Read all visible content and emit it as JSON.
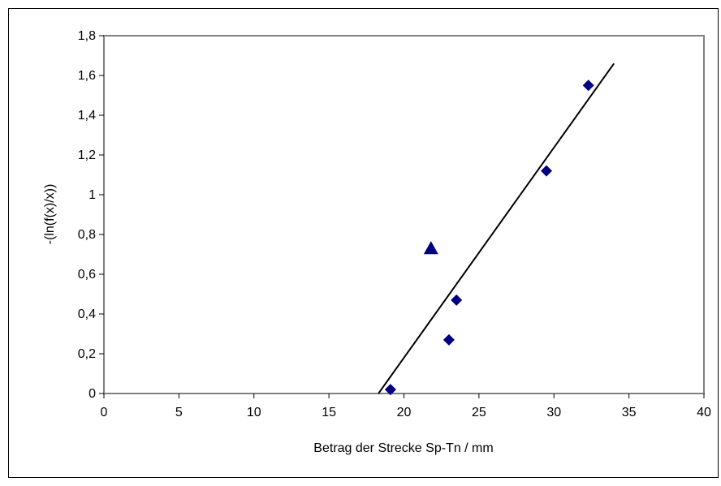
{
  "chart_data": {
    "type": "scatter",
    "xlabel": "Betrag der Strecke Sp-Tn / mm",
    "ylabel": "-(ln(f(x)/x))",
    "xlim": [
      0,
      40
    ],
    "ylim": [
      0,
      1.8
    ],
    "x_ticks": [
      0,
      5,
      10,
      15,
      20,
      25,
      30,
      35,
      40
    ],
    "x_tick_labels": [
      "0",
      "5",
      "10",
      "15",
      "20",
      "25",
      "30",
      "35",
      "40"
    ],
    "y_ticks": [
      0,
      0.2,
      0.4,
      0.6,
      0.8,
      1.0,
      1.2,
      1.4,
      1.6,
      1.8
    ],
    "y_tick_labels": [
      "0",
      "0,2",
      "0,4",
      "0,6",
      "0,8",
      "1",
      "1,2",
      "1,4",
      "1,6",
      "1,8"
    ],
    "grid": false,
    "series": [
      {
        "marker": "diamond",
        "color": "#000080",
        "points": [
          {
            "x": 19.1,
            "y": 0.02
          },
          {
            "x": 23.0,
            "y": 0.27
          },
          {
            "x": 23.5,
            "y": 0.47
          },
          {
            "x": 29.5,
            "y": 1.12
          },
          {
            "x": 32.3,
            "y": 1.55
          }
        ]
      },
      {
        "marker": "triangle",
        "color": "#000080",
        "points": [
          {
            "x": 21.8,
            "y": 0.73
          }
        ]
      }
    ],
    "trendline": {
      "color": "#000000",
      "from": {
        "x": 18.3,
        "y": 0.0
      },
      "to": {
        "x": 34.0,
        "y": 1.66
      }
    }
  }
}
